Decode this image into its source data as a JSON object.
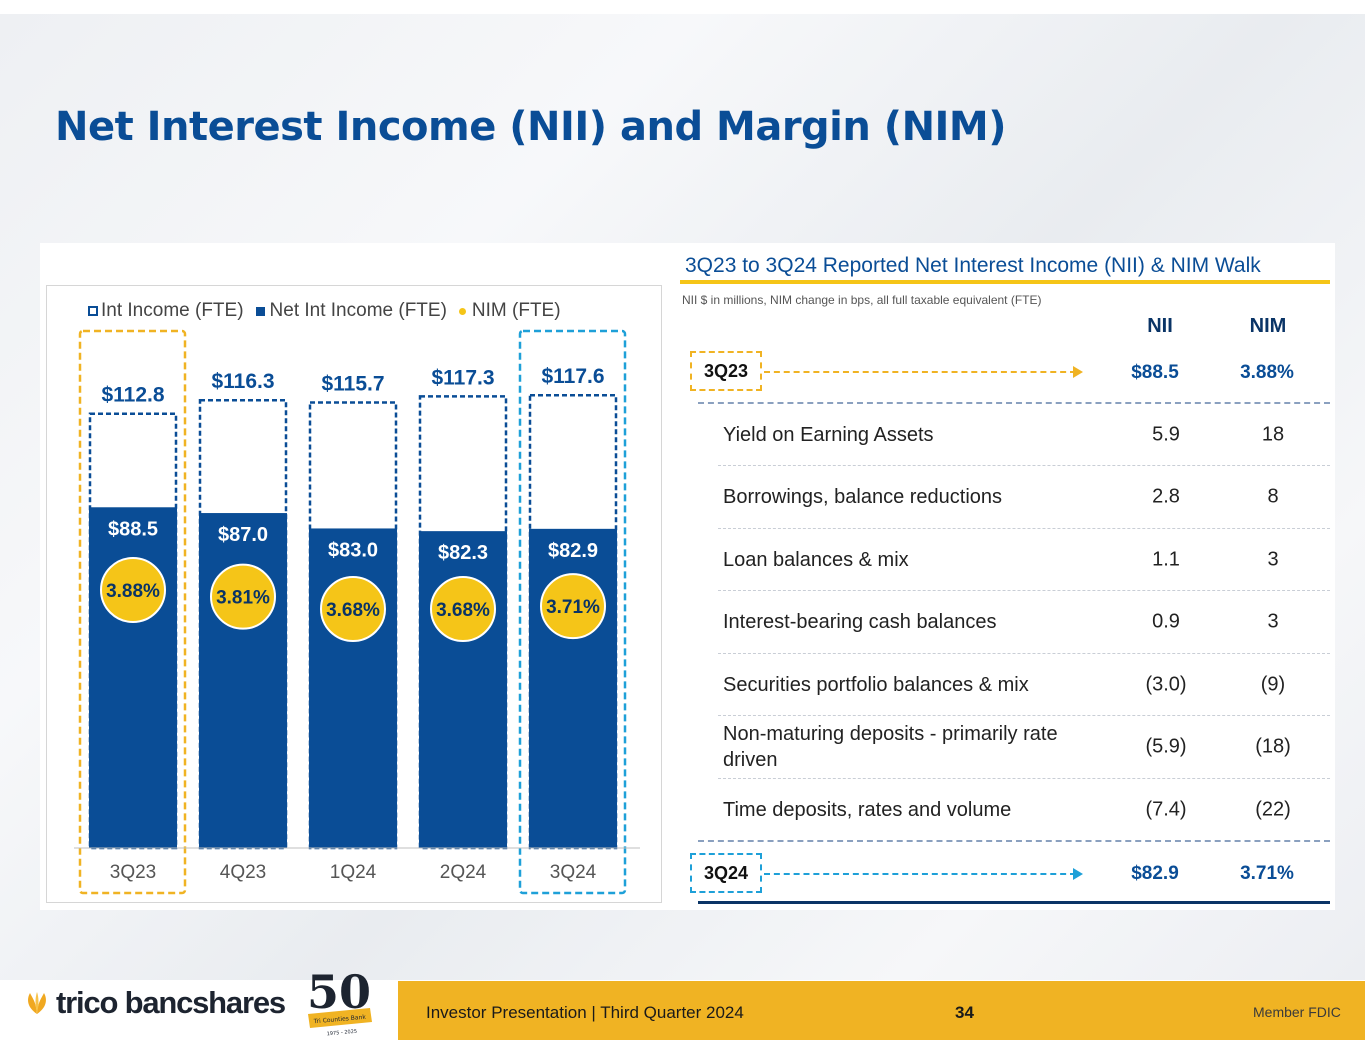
{
  "title": "Net Interest Income (NII) and Margin (NIM)",
  "legend": {
    "int_income": "Int Income (FTE)",
    "net_int_income": "Net Int Income (FTE)",
    "nim": "NIM (FTE)"
  },
  "chart_data": {
    "type": "bar",
    "categories": [
      "3Q23",
      "4Q23",
      "1Q24",
      "2Q24",
      "3Q24"
    ],
    "series": [
      {
        "name": "Int Income (FTE)",
        "values": [
          112.8,
          116.3,
          115.7,
          117.3,
          117.6
        ],
        "labels": [
          "$112.8",
          "$116.3",
          "$115.7",
          "$117.3",
          "$117.6"
        ]
      },
      {
        "name": "Net Int Income (FTE)",
        "values": [
          88.5,
          87.0,
          83.0,
          82.3,
          82.9
        ],
        "labels": [
          "$88.5",
          "$87.0",
          "$83.0",
          "$82.3",
          "$82.9"
        ]
      },
      {
        "name": "NIM (FTE)",
        "values": [
          3.88,
          3.81,
          3.68,
          3.68,
          3.71
        ],
        "labels": [
          "3.88%",
          "3.81%",
          "3.68%",
          "3.68%",
          "3.71%"
        ]
      }
    ],
    "highlighted_categories": {
      "start": "3Q23",
      "end": "3Q24"
    },
    "colors": {
      "net_int_income": "#0a4d96",
      "nim": "#f5c518",
      "highlight_start": "#f0b323",
      "highlight_end": "#1ea0d8"
    }
  },
  "walk": {
    "title": "3Q23 to 3Q24 Reported Net Interest Income (NII) & NIM Walk",
    "subtitle": "NII $ in millions, NIM change in bps, all full taxable equivalent (FTE)",
    "col_nii": "NII",
    "col_nim": "NIM",
    "start": {
      "label": "3Q23",
      "nii": "$88.5",
      "nim": "3.88%"
    },
    "rows": [
      {
        "label": "Yield on Earning Assets",
        "nii": "5.9",
        "nim": "18"
      },
      {
        "label": "Borrowings, balance reductions",
        "nii": "2.8",
        "nim": "8"
      },
      {
        "label": "Loan balances & mix",
        "nii": "1.1",
        "nim": "3"
      },
      {
        "label": "Interest-bearing cash balances",
        "nii": "0.9",
        "nim": "3"
      },
      {
        "label": "Securities portfolio balances & mix",
        "nii": "(3.0)",
        "nim": "(9)"
      },
      {
        "label": "Non-maturing deposits - primarily rate driven",
        "nii": "(5.9)",
        "nim": "(18)"
      },
      {
        "label": "Time deposits, rates and volume",
        "nii": "(7.4)",
        "nim": "(22)"
      }
    ],
    "end": {
      "label": "3Q24",
      "nii": "$82.9",
      "nim": "3.71%"
    }
  },
  "footer": {
    "logo_text": "trico bancshares",
    "badge_number": "50",
    "badge_text": "Tri Counties Bank",
    "badge_years": "1975 - 2025",
    "presentation": "Investor Presentation | Third Quarter 2024",
    "page": "34",
    "fdic": "Member FDIC",
    "logo_icon": "trico-leaf-icon"
  }
}
